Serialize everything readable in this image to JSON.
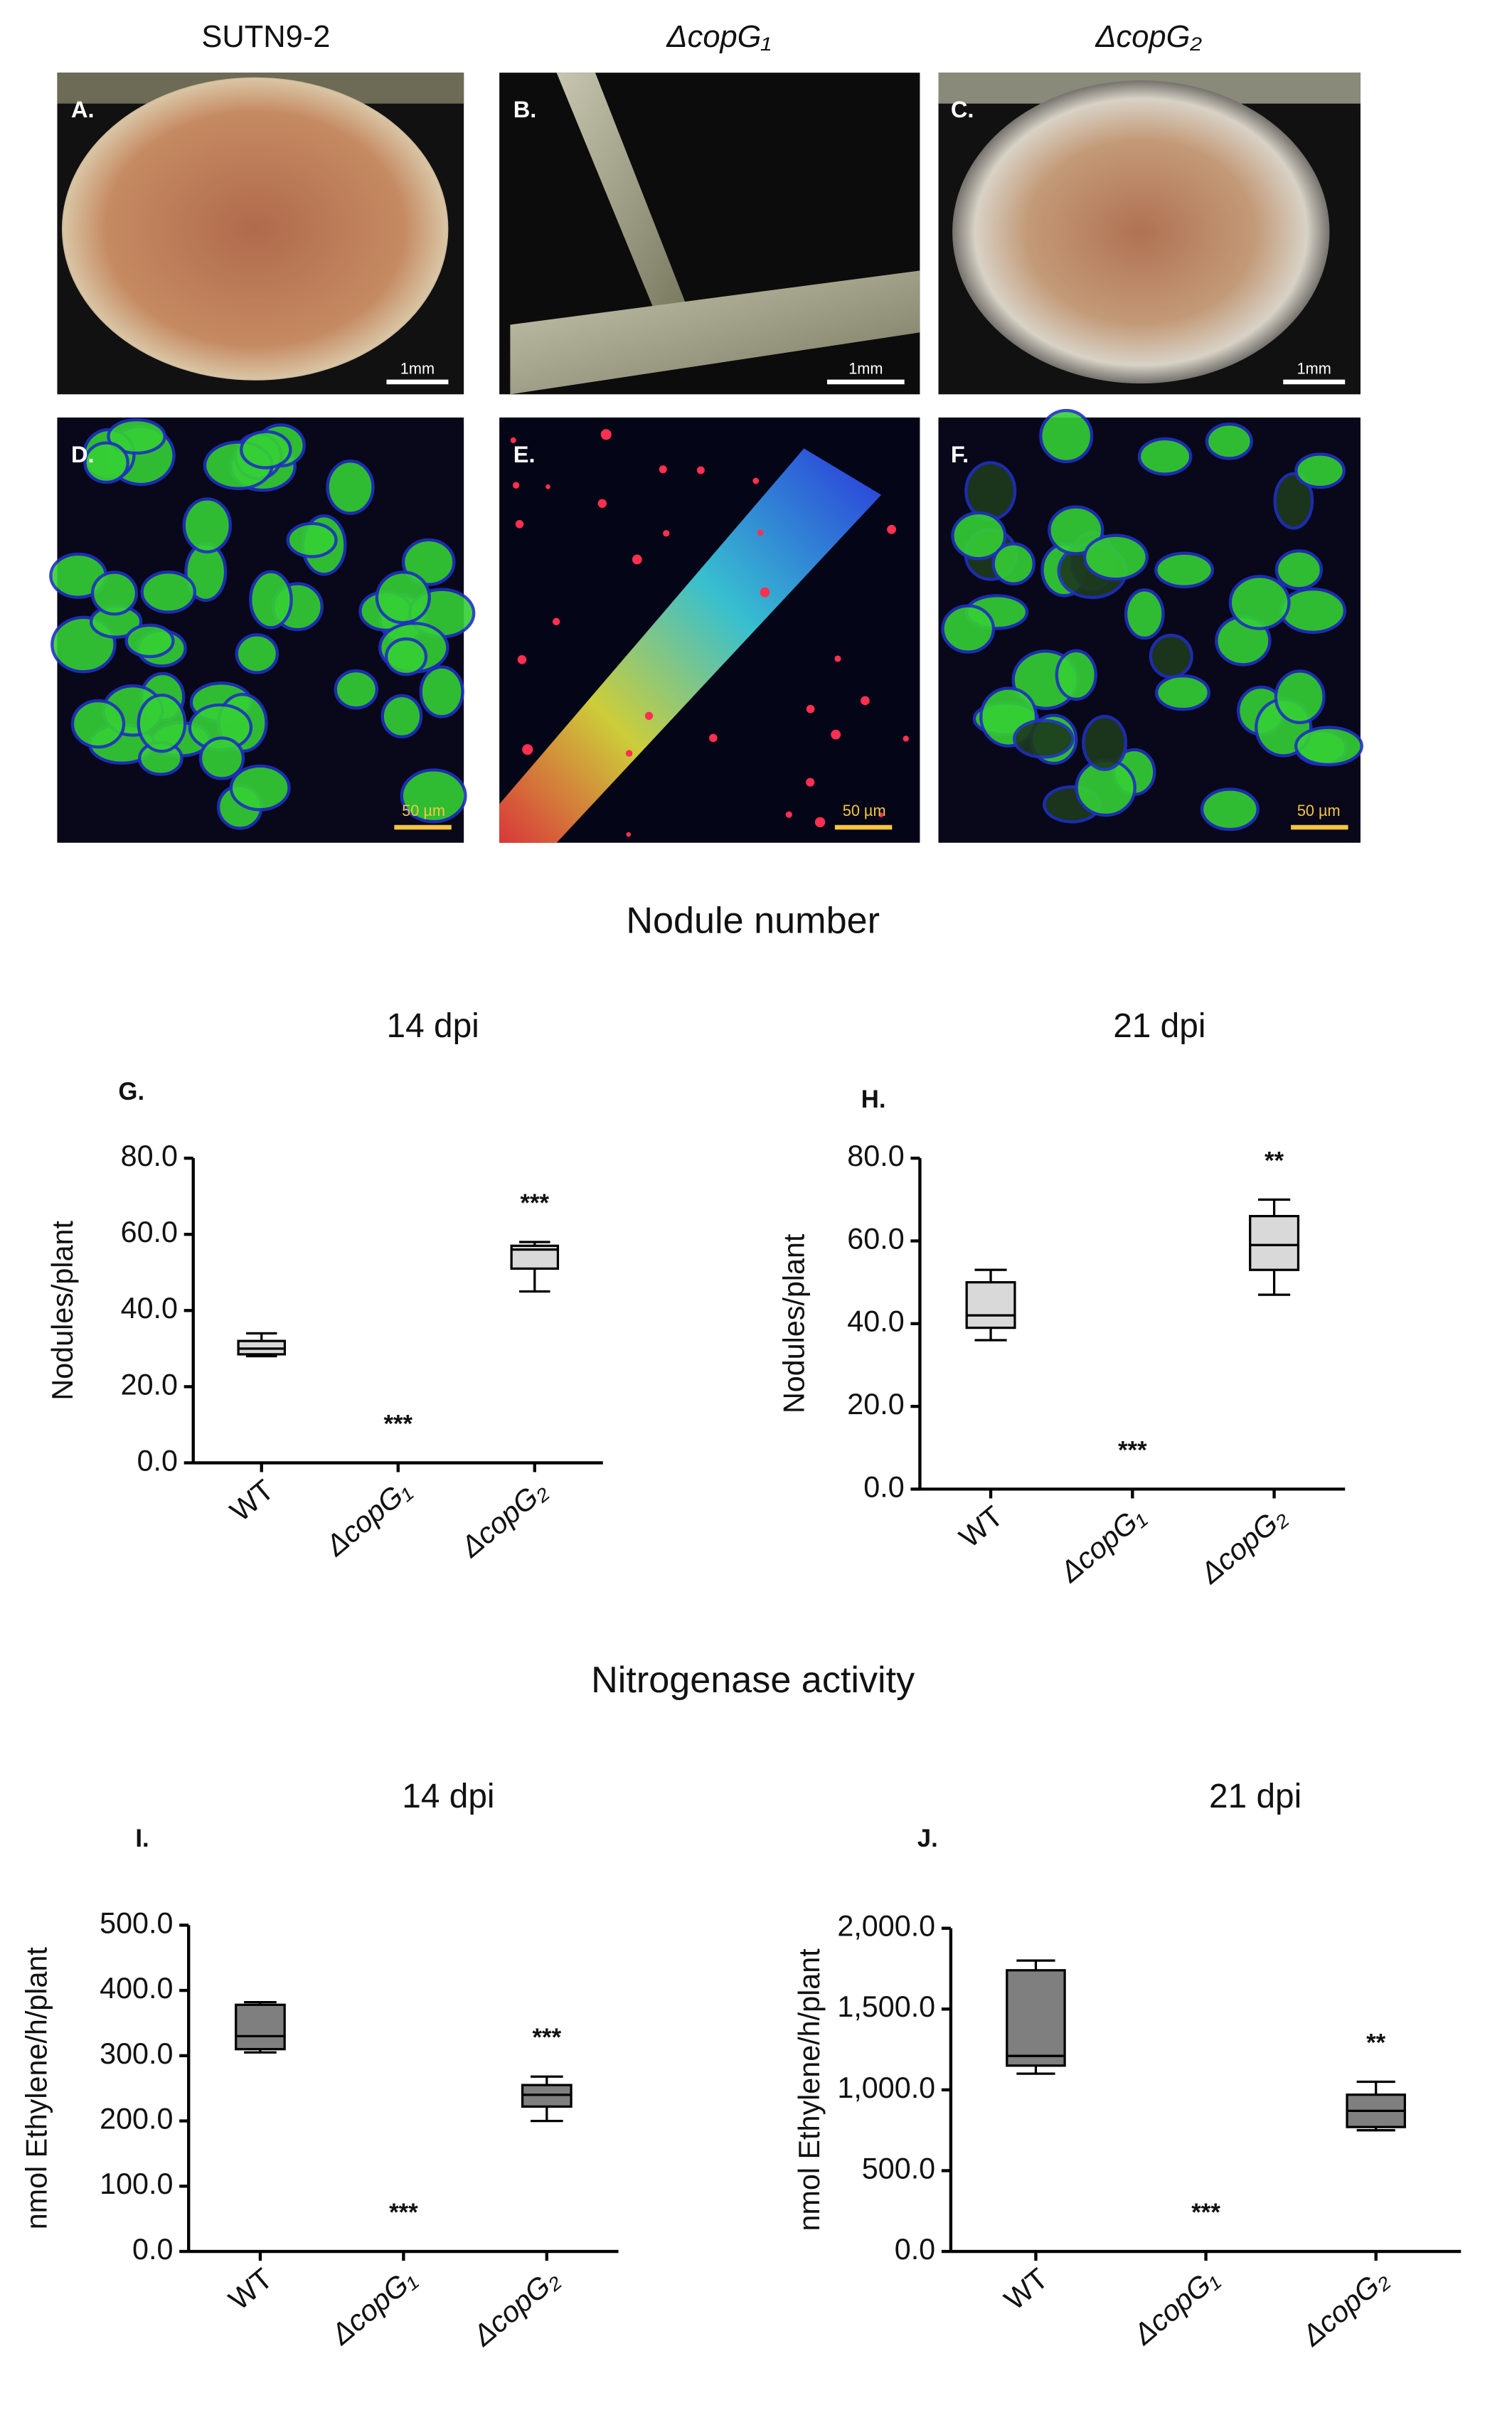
{
  "column_labels": [
    "SUTN9-2",
    "ΔcopG₁",
    "ΔcopG₂"
  ],
  "panels": [
    {
      "label": "A.",
      "scale_bar": "1mm"
    },
    {
      "label": "B.",
      "scale_bar": "1mm"
    },
    {
      "label": "C.",
      "scale_bar": "1mm"
    },
    {
      "label": "D.",
      "scale_bar": "50 µm"
    },
    {
      "label": "E.",
      "scale_bar": "50 µm"
    },
    {
      "label": "F.",
      "scale_bar": "50 µm"
    }
  ],
  "section_titles": [
    "Nodule number",
    "Nitrogenase activity"
  ],
  "chart_data": [
    {
      "type": "box",
      "title": "14 dpi",
      "panel_label": "G.",
      "ylabel": "Nodules/plant",
      "color": "#d9d9d9",
      "categories": [
        "WT",
        "ΔcopG₁",
        "ΔcopG₂"
      ],
      "boxes": [
        {
          "min": 28,
          "q1": 28.5,
          "median": 30,
          "q3": 32,
          "max": 34
        },
        {
          "min": 0,
          "q1": 0,
          "median": 0,
          "q3": 0,
          "max": 0
        },
        {
          "min": 45,
          "q1": 51,
          "median": 56,
          "q3": 57,
          "max": 58
        }
      ],
      "significance": [
        null,
        "***",
        "***"
      ],
      "ylim": [
        0,
        80
      ],
      "yticks": [
        {
          "value": 0,
          "label": "0.0"
        },
        {
          "value": 20,
          "label": "20.0"
        },
        {
          "value": 40,
          "label": "40.0"
        },
        {
          "value": 60,
          "label": "60.0"
        },
        {
          "value": 80,
          "label": "80.0"
        }
      ]
    },
    {
      "type": "box",
      "title": "21 dpi",
      "panel_label": "H.",
      "ylabel": "Nodules/plant",
      "color": "#d9d9d9",
      "categories": [
        "WT",
        "ΔcopG₁",
        "ΔcopG₂"
      ],
      "boxes": [
        {
          "min": 36,
          "q1": 39,
          "median": 42,
          "q3": 50,
          "max": 53
        },
        {
          "min": 0,
          "q1": 0,
          "median": 0,
          "q3": 0,
          "max": 0
        },
        {
          "min": 47,
          "q1": 53,
          "median": 59,
          "q3": 66,
          "max": 70
        }
      ],
      "significance": [
        null,
        "***",
        "**"
      ],
      "ylim": [
        0,
        80
      ],
      "yticks": [
        {
          "value": 0,
          "label": "0.0"
        },
        {
          "value": 20,
          "label": "20.0"
        },
        {
          "value": 40,
          "label": "40.0"
        },
        {
          "value": 60,
          "label": "60.0"
        },
        {
          "value": 80,
          "label": "80.0"
        }
      ]
    },
    {
      "type": "box",
      "title": "14 dpi",
      "panel_label": "I.",
      "ylabel": "nmol Ethylene/h/plant",
      "color": "#7f7f7f",
      "categories": [
        "WT",
        "ΔcopG₁",
        "ΔcopG₂"
      ],
      "boxes": [
        {
          "min": 305,
          "q1": 310,
          "median": 330,
          "q3": 378,
          "max": 382
        },
        {
          "min": 0,
          "q1": 0,
          "median": 0,
          "q3": 0,
          "max": 0
        },
        {
          "min": 200,
          "q1": 222,
          "median": 240,
          "q3": 255,
          "max": 268
        }
      ],
      "significance": [
        null,
        "***",
        "***"
      ],
      "ylim": [
        0,
        500
      ],
      "yticks": [
        {
          "value": 0,
          "label": "0.0"
        },
        {
          "value": 100,
          "label": "100.0"
        },
        {
          "value": 200,
          "label": "200.0"
        },
        {
          "value": 300,
          "label": "300.0"
        },
        {
          "value": 400,
          "label": "400.0"
        },
        {
          "value": 500,
          "label": "500.0"
        }
      ]
    },
    {
      "type": "box",
      "title": "21 dpi",
      "panel_label": "J.",
      "ylabel": "nmol Ethylene/h/plant",
      "color": "#7f7f7f",
      "categories": [
        "WT",
        "ΔcopG₁",
        "ΔcopG₂"
      ],
      "boxes": [
        {
          "min": 1100,
          "q1": 1150,
          "median": 1210,
          "q3": 1740,
          "max": 1800
        },
        {
          "min": 0,
          "q1": 0,
          "median": 0,
          "q3": 0,
          "max": 0
        },
        {
          "min": 750,
          "q1": 770,
          "median": 870,
          "q3": 970,
          "max": 1050
        }
      ],
      "significance": [
        null,
        "***",
        "**"
      ],
      "ylim": [
        0,
        2000
      ],
      "yticks": [
        {
          "value": 0,
          "label": "0.0"
        },
        {
          "value": 500,
          "label": "500.0"
        },
        {
          "value": 1000,
          "label": "1,000.0"
        },
        {
          "value": 1500,
          "label": "1,500.0"
        },
        {
          "value": 2000,
          "label": "2,000.0"
        }
      ]
    }
  ]
}
